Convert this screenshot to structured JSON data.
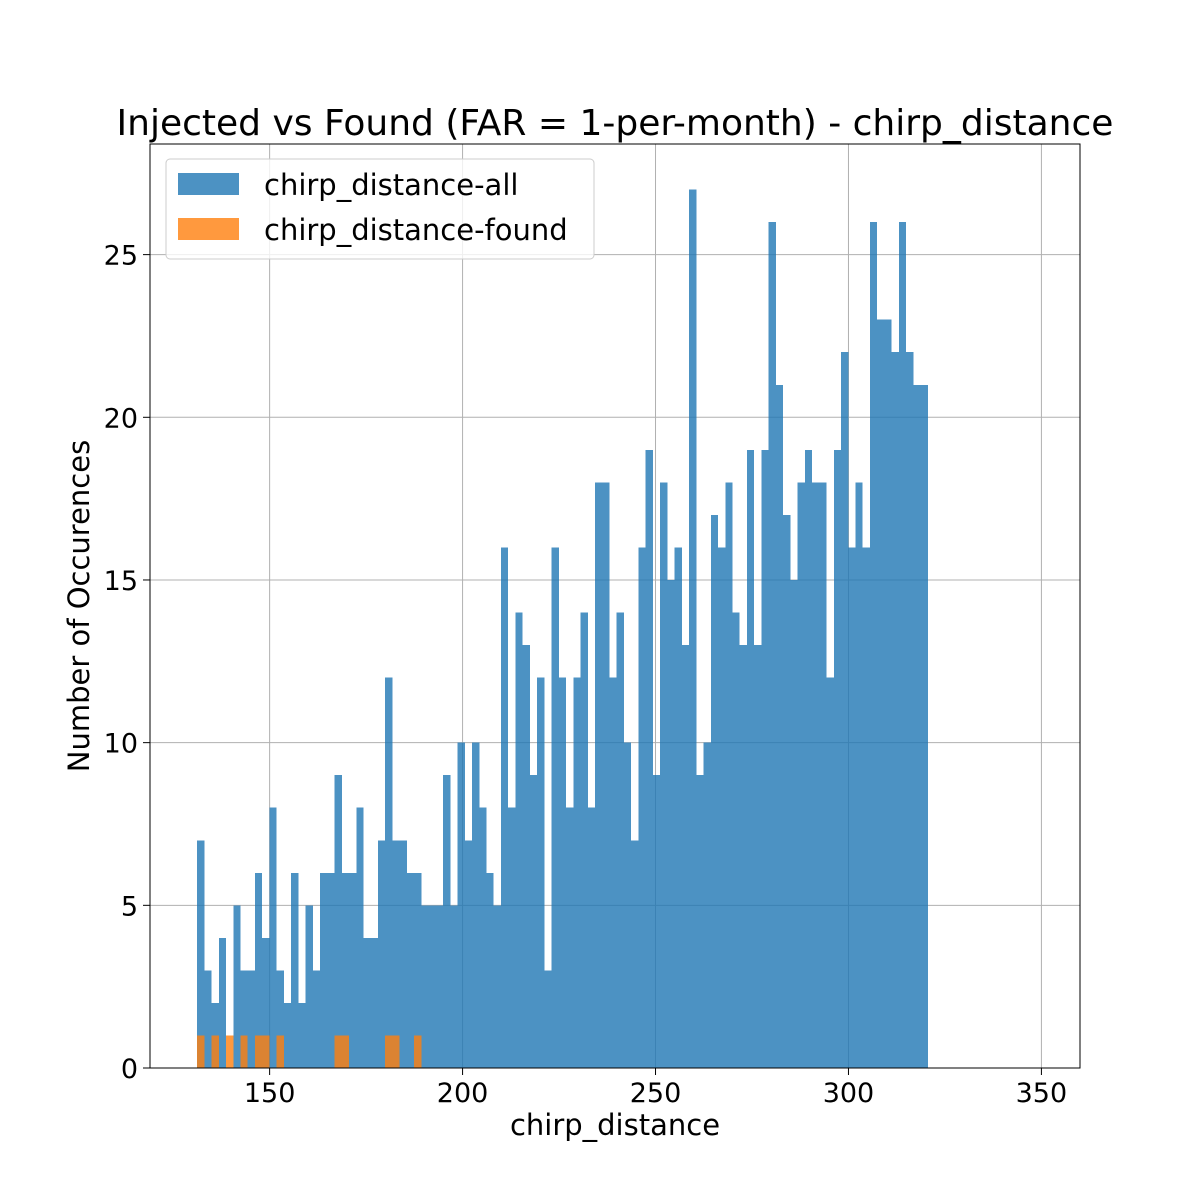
{
  "chart_data": {
    "type": "bar",
    "title": "Injected vs Found (FAR = 1-per-month) - chirp_distance",
    "xlabel": "chirp_distance",
    "ylabel": "Number of Occurences",
    "xlim": [
      119,
      360
    ],
    "ylim": [
      0,
      28.4
    ],
    "x_ticks": [
      150,
      200,
      250,
      300,
      350
    ],
    "y_ticks": [
      0,
      5,
      10,
      15,
      20,
      25
    ],
    "grid": true,
    "legend_position": "top-left",
    "bin_start": 131.2,
    "bin_width": 1.875,
    "series": [
      {
        "name": "chirp_distance-all",
        "color": "#1f77b4",
        "values": [
          7,
          3,
          2,
          4,
          0,
          5,
          3,
          3,
          6,
          4,
          8,
          3,
          2,
          6,
          2,
          5,
          3,
          6,
          6,
          9,
          6,
          6,
          8,
          4,
          4,
          7,
          12,
          7,
          7,
          6,
          6,
          5,
          5,
          5,
          9,
          5,
          10,
          7,
          10,
          8,
          6,
          5,
          16,
          8,
          14,
          13,
          9,
          12,
          3,
          16,
          12,
          8,
          12,
          14,
          8,
          18,
          18,
          12,
          14,
          10,
          7,
          16,
          19,
          9,
          18,
          15,
          16,
          13,
          27,
          9,
          10,
          17,
          16,
          18,
          14,
          13,
          19,
          13,
          19,
          26,
          21,
          17,
          15,
          18,
          19,
          18,
          18,
          12,
          19,
          22,
          16,
          18,
          16,
          26,
          23,
          23,
          22,
          26,
          22,
          21,
          21
        ]
      },
      {
        "name": "chirp_distance-found",
        "color": "#ff7f0e",
        "values": [
          1,
          0,
          1,
          0,
          1,
          0,
          1,
          0,
          1,
          1,
          0,
          1,
          0,
          0,
          0,
          0,
          0,
          0,
          0,
          1,
          1,
          0,
          0,
          0,
          0,
          0,
          1,
          1,
          0,
          0,
          1,
          0,
          0,
          0,
          0,
          0,
          0,
          0,
          0,
          0,
          0,
          0,
          0,
          0,
          0,
          0,
          0,
          0,
          0,
          0,
          0,
          0,
          0,
          0,
          0,
          0,
          0,
          0,
          0,
          0,
          0,
          0,
          0,
          0,
          0,
          0,
          0,
          0,
          0,
          0,
          0,
          0,
          0,
          0,
          0,
          0,
          0,
          0,
          0,
          0,
          0,
          0,
          0,
          0,
          0,
          0,
          0,
          0,
          0,
          0,
          0,
          0,
          0,
          0,
          0,
          0,
          0,
          0,
          0,
          0,
          0
        ]
      }
    ]
  }
}
